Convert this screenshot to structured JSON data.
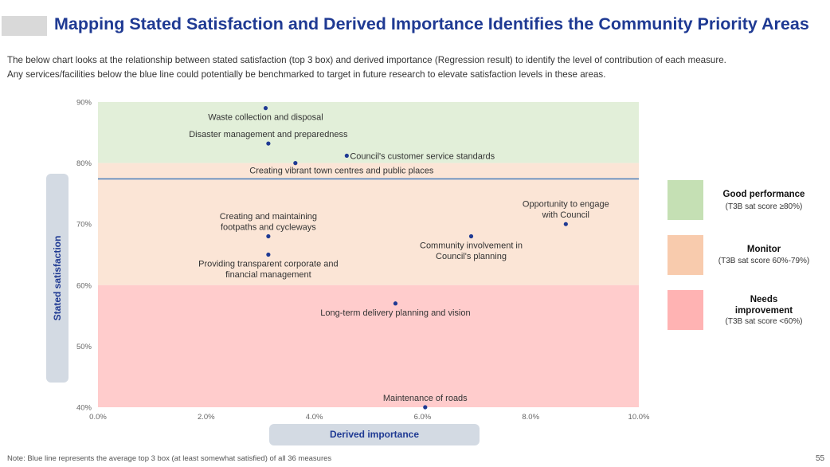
{
  "header": {
    "title": "Mapping Stated Satisfaction and Derived Importance Identifies the Community Priority Areas",
    "subtitle_line1": "The below chart looks at the relationship between stated satisfaction (top 3 box) and derived importance (Regression result) to identify the level of contribution of each measure.",
    "subtitle_line2": "Any services/facilities below the blue line could potentially be benchmarked to target in future research to elevate satisfaction levels in these areas."
  },
  "chart_data": {
    "type": "scatter",
    "xlabel": "Derived importance",
    "ylabel": "Stated satisfaction",
    "xlim": [
      0,
      10
    ],
    "ylim": [
      40,
      90
    ],
    "x_ticks": [
      0,
      2,
      4,
      6,
      8,
      10
    ],
    "x_tick_labels": [
      "0.0%",
      "2.0%",
      "4.0%",
      "6.0%",
      "8.0%",
      "10.0%"
    ],
    "y_ticks": [
      40,
      50,
      60,
      70,
      80,
      90
    ],
    "y_tick_labels": [
      "40%",
      "50%",
      "60%",
      "70%",
      "80%",
      "90%"
    ],
    "reference_line": {
      "y": 77.4
    },
    "bands": [
      {
        "label": "Good performance",
        "from": 80,
        "to": 90,
        "color": "#e2efd9"
      },
      {
        "label": "Monitor",
        "from": 60,
        "to": 80,
        "color": "#fbe5d6"
      },
      {
        "label": "Needs improvement",
        "from": 40,
        "to": 60,
        "color": "#ffcccc"
      }
    ],
    "points": [
      {
        "label": "Waste collection and disposal",
        "x": 3.1,
        "y": 89.0,
        "lines": [
          "Waste collection and disposal"
        ],
        "anchor": "below"
      },
      {
        "label": "Disaster management and preparedness",
        "x": 3.15,
        "y": 83.2,
        "lines": [
          "Disaster management and preparedness"
        ],
        "anchor": "above"
      },
      {
        "label": "Council's customer service standards",
        "x": 4.6,
        "y": 81.2,
        "lines": [
          "Council's customer service standards"
        ],
        "anchor": "right"
      },
      {
        "label": "Creating vibrant town centres and public places",
        "x": 3.65,
        "y": 80.0,
        "lines": [
          "Creating vibrant town centres and public places"
        ],
        "anchor": "below-right"
      },
      {
        "label": "Opportunity to engage with Council",
        "x": 8.65,
        "y": 70.0,
        "lines": [
          "Opportunity to engage",
          "with Council"
        ],
        "anchor": "above"
      },
      {
        "label": "Creating and maintaining footpaths and cycleways",
        "x": 3.15,
        "y": 68.0,
        "lines": [
          "Creating and maintaining",
          "footpaths and cycleways"
        ],
        "anchor": "above"
      },
      {
        "label": "Community involvement in Council's planning",
        "x": 6.9,
        "y": 68.0,
        "lines": [
          "Community involvement in",
          "Council's planning"
        ],
        "anchor": "below"
      },
      {
        "label": "Providing transparent corporate and financial management",
        "x": 3.15,
        "y": 65.0,
        "lines": [
          "Providing transparent corporate and",
          "financial management"
        ],
        "anchor": "below"
      },
      {
        "label": "Long-term delivery planning and vision",
        "x": 5.5,
        "y": 57.0,
        "lines": [
          "Long-term delivery planning and vision"
        ],
        "anchor": "below"
      },
      {
        "label": "Maintenance of roads",
        "x": 6.05,
        "y": 40.0,
        "lines": [
          "Maintenance of roads"
        ],
        "anchor": "above"
      }
    ],
    "colors": {
      "point": "#1f3a93",
      "reference_line": "#4a7ebb",
      "axis_text": "#666666"
    }
  },
  "legend": [
    {
      "title": "Good performance",
      "desc": "(T3B sat score ≥80%)",
      "color": "#c5e0b4"
    },
    {
      "title": "Monitor",
      "desc": "(T3B sat score 60%-79%)",
      "color": "#f8cbad"
    },
    {
      "title": "Needs improvement",
      "desc": "(T3B sat score <60%)",
      "color": "#ffb3b3"
    }
  ],
  "footer": {
    "note": "Note: Blue line represents the average top 3 box (at least somewhat satisfied) of all 36 measures",
    "page": "55"
  }
}
